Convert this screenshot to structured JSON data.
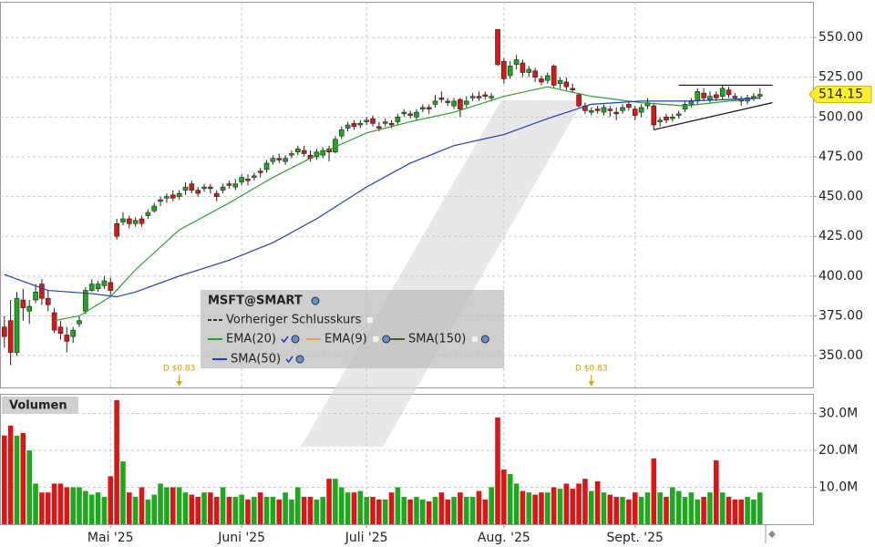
{
  "chart_data": {
    "type": "candlestick",
    "title": "MSFT@SMART",
    "xlim": [
      -0.7,
      129.5
    ],
    "xticks": [
      {
        "value": 17,
        "label": "Mai '25"
      },
      {
        "value": 38,
        "label": "Juni '25"
      },
      {
        "value": 58,
        "label": "Juli '25"
      },
      {
        "value": 80,
        "label": "Aug. '25"
      },
      {
        "value": 101,
        "label": "Sept. '25"
      }
    ],
    "ylim": [
      330,
      572.4
    ],
    "yticks": [
      {
        "value": 350,
        "label": "350.00"
      },
      {
        "value": 375,
        "label": "375.00"
      },
      {
        "value": 400,
        "label": "400.00"
      },
      {
        "value": 425,
        "label": "425.00"
      },
      {
        "value": 450,
        "label": "450.00"
      },
      {
        "value": 475,
        "label": "475.00"
      },
      {
        "value": 500,
        "label": "500.00"
      },
      {
        "value": 525,
        "label": "525.00"
      },
      {
        "value": 550,
        "label": "550.00"
      }
    ],
    "grid": true,
    "up_color": "#1fa81f",
    "down_color": "#d81818",
    "open": [
      368,
      372,
      352,
      385,
      378,
      385,
      395,
      386,
      377,
      368,
      363,
      362,
      370,
      378,
      391,
      392,
      394,
      396,
      433,
      434,
      436,
      433,
      436,
      438,
      441,
      447,
      449,
      451,
      450,
      454,
      458,
      454,
      455,
      456,
      452,
      454,
      458,
      456,
      459,
      461,
      462,
      466,
      467,
      472,
      474,
      472,
      476,
      478,
      479,
      476,
      475,
      476,
      480,
      478,
      488,
      493,
      496,
      495,
      497,
      499,
      494,
      496,
      496,
      497,
      502,
      502,
      500,
      505,
      506,
      508,
      512,
      510,
      507,
      511,
      508,
      512,
      513,
      514,
      512,
      555,
      535,
      526,
      533,
      534,
      528,
      529,
      524,
      523,
      532,
      521,
      522,
      518,
      514,
      507,
      503,
      505,
      503,
      505,
      503,
      504,
      508,
      505,
      503,
      507,
      507,
      497,
      500,
      499,
      501,
      505,
      508,
      510,
      515,
      511,
      514,
      513,
      517,
      513,
      511,
      510,
      512,
      513
    ],
    "high": [
      375,
      385,
      390,
      392,
      385,
      395,
      398,
      391,
      380,
      372,
      368,
      368,
      375,
      393,
      398,
      397,
      400,
      399,
      436,
      440,
      438,
      437,
      438,
      442,
      446,
      450,
      452,
      454,
      454,
      459,
      460,
      456,
      458,
      458,
      454,
      458,
      460,
      461,
      464,
      464,
      465,
      468,
      473,
      476,
      477,
      476,
      479,
      482,
      482,
      479,
      480,
      481,
      482,
      488,
      494,
      497,
      498,
      498,
      500,
      501,
      497,
      499,
      498,
      502,
      505,
      504,
      505,
      508,
      508,
      514,
      516,
      512,
      512,
      512,
      513,
      515,
      516,
      516,
      515,
      555,
      537,
      535,
      539,
      536,
      532,
      531,
      526,
      528,
      533,
      525,
      525,
      521,
      515,
      509,
      506,
      507,
      508,
      507,
      506,
      508,
      510,
      507,
      508,
      512,
      509,
      500,
      502,
      502,
      504,
      510,
      512,
      518,
      518,
      516,
      516,
      520,
      519,
      515,
      513,
      514,
      515,
      518
    ],
    "low": [
      355,
      344,
      350,
      372,
      370,
      383,
      382,
      378,
      364,
      360,
      352,
      358,
      368,
      376,
      390,
      390,
      392,
      388,
      423,
      432,
      430,
      431,
      431,
      436,
      440,
      444,
      446,
      447,
      448,
      451,
      452,
      450,
      453,
      452,
      447,
      452,
      455,
      454,
      457,
      457,
      460,
      462,
      465,
      470,
      471,
      470,
      474,
      476,
      475,
      472,
      473,
      474,
      472,
      477,
      486,
      491,
      492,
      493,
      495,
      494,
      491,
      494,
      493,
      495,
      500,
      499,
      498,
      503,
      502,
      506,
      509,
      507,
      505,
      500,
      506,
      510,
      510,
      511,
      510,
      532,
      521,
      524,
      530,
      525,
      525,
      522,
      520,
      521,
      518,
      518,
      517,
      515,
      506,
      502,
      501,
      502,
      501,
      500,
      498,
      502,
      504,
      498,
      500,
      505,
      492,
      494,
      496,
      497,
      499,
      503,
      506,
      508,
      510,
      509,
      510,
      511,
      512,
      510,
      507,
      508,
      510,
      511
    ],
    "close": [
      362,
      352,
      386,
      380,
      381,
      390,
      386,
      382,
      366,
      364,
      359,
      366,
      372,
      391,
      395,
      395,
      397,
      391,
      425,
      436,
      433,
      435,
      433,
      440,
      444,
      448,
      450,
      449,
      452,
      456,
      454,
      452,
      456,
      455,
      450,
      456,
      457,
      458,
      462,
      460,
      463,
      465,
      471,
      474,
      473,
      474,
      477,
      480,
      477,
      474,
      478,
      479,
      478,
      486,
      492,
      495,
      494,
      496,
      498,
      496,
      493,
      497,
      495,
      500,
      503,
      501,
      503,
      506,
      505,
      510,
      511,
      509,
      510,
      505,
      510,
      513,
      512,
      513,
      513,
      533,
      524,
      532,
      536,
      528,
      530,
      525,
      522,
      526,
      520,
      523,
      519,
      517,
      507,
      504,
      504,
      504,
      506,
      504,
      502,
      506,
      506,
      501,
      506,
      509,
      495,
      498,
      498,
      500,
      502,
      508,
      510,
      516,
      512,
      513,
      512,
      518,
      514,
      512,
      510,
      512,
      513,
      514.15
    ],
    "volume": [
      24,
      26.7,
      24,
      24.7,
      20,
      11,
      8.6,
      8.6,
      11,
      11,
      10,
      10,
      10,
      9,
      8,
      8.6,
      7.4,
      13,
      33.6,
      17,
      8.6,
      7.4,
      10,
      6.7,
      8,
      11,
      10,
      10,
      10,
      8.6,
      8,
      7.4,
      8.6,
      8.6,
      7.4,
      10,
      7.4,
      7.4,
      8,
      6.7,
      7.4,
      8.6,
      7.4,
      7.4,
      6.7,
      8.6,
      6.7,
      10,
      7.4,
      7.4,
      6.7,
      7.4,
      12.3,
      12.3,
      10,
      8.6,
      8.6,
      9,
      7.4,
      7.4,
      6.7,
      6.7,
      8.6,
      10,
      7.4,
      6.7,
      7.4,
      6.7,
      6.2,
      7.4,
      8.6,
      6.7,
      7.4,
      8.6,
      7.4,
      7.4,
      9,
      6.7,
      10,
      28.9,
      14.8,
      13.6,
      11,
      9,
      8.6,
      8,
      8.6,
      8.6,
      10,
      9.6,
      11,
      9.6,
      11,
      12.3,
      9,
      11.6,
      8.6,
      8,
      7.4,
      7.4,
      6.7,
      8.6,
      7.4,
      8.6,
      17.8,
      8.6,
      7.4,
      10,
      9,
      7.4,
      8.6,
      6.7,
      7.4,
      8.6,
      17.3,
      8.6,
      7.4,
      6.7,
      6.7,
      7.4,
      6.7,
      8.6
    ],
    "volume_panel": {
      "label": "Volumen",
      "ylim": [
        0,
        35.3
      ],
      "yticks": [
        {
          "value": 10,
          "label": "10.0M"
        },
        {
          "value": 20,
          "label": "20.0M"
        },
        {
          "value": 30,
          "label": "30.0M"
        }
      ]
    },
    "indicators": [
      {
        "name": "Vorheriger Schlusskurs",
        "color": "#333333",
        "style": "dashed",
        "visible": false
      },
      {
        "name": "EMA(20)",
        "color": "#2ca02c",
        "visible": true,
        "x": [
          8,
          12,
          17,
          21,
          28,
          36,
          43,
          50,
          58,
          65,
          72,
          80,
          87,
          94,
          102,
          109,
          116,
          121
        ],
        "values": [
          372,
          375,
          387,
          404,
          429,
          446,
          462,
          476,
          490,
          497,
          503,
          513,
          519,
          513,
          509,
          507,
          510,
          512
        ]
      },
      {
        "name": "EMA(9)",
        "color": "#e8a050",
        "visible": false
      },
      {
        "name": "SMA(150)",
        "color": "#4d5a1c",
        "visible": false
      },
      {
        "name": "SMA(50)",
        "color": "#1f3fbf",
        "visible": true,
        "x": [
          0,
          7,
          14,
          18,
          21,
          28,
          36,
          43,
          50,
          58,
          65,
          72,
          80,
          87,
          94,
          102,
          109,
          116,
          121
        ],
        "values": [
          401,
          391,
          389,
          387,
          390,
          400,
          410,
          421,
          436,
          456,
          471,
          482,
          489,
          499,
          508,
          510,
          510,
          511,
          512
        ]
      }
    ],
    "trendlines": [
      {
        "x": [
          108,
          123
        ],
        "values": [
          520,
          520
        ]
      },
      {
        "x": [
          104,
          123
        ],
        "values": [
          492,
          509
        ]
      }
    ],
    "events": [
      {
        "x": 28,
        "label": "D $0.83"
      },
      {
        "x": 94,
        "label": "D $0.83"
      }
    ]
  }
}
